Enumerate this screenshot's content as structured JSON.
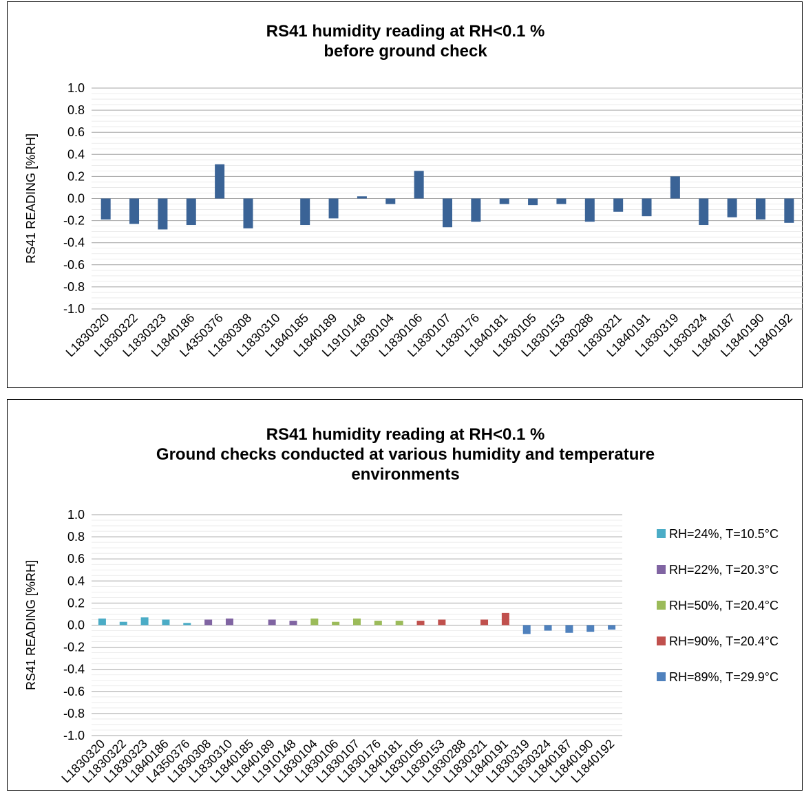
{
  "chart_data": [
    {
      "type": "bar",
      "title_lines": [
        "RS41 humidity reading at RH<0.1 %",
        "before ground check"
      ],
      "ylabel": "RS41 READING [%RH]",
      "ylim": [
        -1.0,
        1.0
      ],
      "y_ticks": [
        "1.0",
        "0.8",
        "0.6",
        "0.4",
        "0.2",
        "0.0",
        "-0.2",
        "-0.4",
        "-0.6",
        "-0.8",
        "-1.0"
      ],
      "grid": true,
      "legend": "none",
      "categories": [
        "L1830320",
        "L1830322",
        "L1830323",
        "L1840186",
        "L4350376",
        "L1830308",
        "L1830310",
        "L1840185",
        "L1840189",
        "L1910148",
        "L1830104",
        "L1830106",
        "L1830107",
        "L1830176",
        "L1840181",
        "L1830105",
        "L1830153",
        "L1830288",
        "L1830321",
        "L1840191",
        "L1830319",
        "L1830324",
        "L1840187",
        "L1840190",
        "L1840192"
      ],
      "values": [
        -0.19,
        -0.23,
        -0.28,
        -0.24,
        0.31,
        -0.27,
        0,
        -0.24,
        -0.18,
        0.02,
        -0.05,
        0.25,
        -0.26,
        -0.21,
        -0.05,
        -0.06,
        -0.05,
        -0.21,
        -0.12,
        -0.16,
        0.2,
        -0.24,
        -0.17,
        -0.19,
        -0.22
      ],
      "color": "#3a6396"
    },
    {
      "type": "bar",
      "title_lines": [
        "RS41 humidity reading at RH<0.1 %",
        "Ground checks conducted at various humidity and temperature",
        "environments"
      ],
      "ylabel": "RS41 READING [%RH]",
      "ylim": [
        -1.0,
        1.0
      ],
      "y_ticks": [
        "1.0",
        "0.8",
        "0.6",
        "0.4",
        "0.2",
        "0.0",
        "-0.2",
        "-0.4",
        "-0.6",
        "-0.8",
        "-1.0"
      ],
      "grid": true,
      "legend": "right",
      "categories": [
        "L1830320",
        "L1830322",
        "L1830323",
        "L1840186",
        "L4350376",
        "L1830308",
        "L1830310",
        "L1840185",
        "L1840189",
        "L1910148",
        "L1830104",
        "L1830106",
        "L1830107",
        "L1830176",
        "L1840181",
        "L1830105",
        "L1830153",
        "L1830288",
        "L1830321",
        "L1840191",
        "L1830319",
        "L1830324",
        "L1840187",
        "L1840190",
        "L1840192"
      ],
      "series": [
        {
          "name": "RH=24%, T=10.5°C",
          "color": "#4bacc6",
          "values": [
            0.06,
            0.03,
            0.07,
            0.05,
            0.02,
            null,
            null,
            null,
            null,
            null,
            null,
            null,
            null,
            null,
            null,
            null,
            null,
            null,
            null,
            null,
            null,
            null,
            null,
            null,
            null
          ]
        },
        {
          "name": "RH=22%, T=20.3°C",
          "color": "#8064a2",
          "values": [
            null,
            null,
            null,
            null,
            null,
            0.05,
            0.06,
            0,
            0.05,
            0.04,
            null,
            null,
            null,
            null,
            null,
            null,
            null,
            null,
            null,
            null,
            null,
            null,
            null,
            null,
            null
          ]
        },
        {
          "name": "RH=50%, T=20.4°C",
          "color": "#9bbb59",
          "values": [
            null,
            null,
            null,
            null,
            null,
            null,
            null,
            null,
            null,
            null,
            0.06,
            0.03,
            0.06,
            0.04,
            0.04,
            null,
            null,
            null,
            null,
            null,
            null,
            null,
            null,
            null,
            null
          ]
        },
        {
          "name": "RH=90%, T=20.4°C",
          "color": "#c0504d",
          "values": [
            null,
            null,
            null,
            null,
            null,
            null,
            null,
            null,
            null,
            null,
            null,
            null,
            null,
            null,
            null,
            0.04,
            0.05,
            0,
            0.05,
            0.11,
            null,
            null,
            null,
            null,
            null
          ]
        },
        {
          "name": "RH=89%, T=29.9°C",
          "color": "#4f81bd",
          "values": [
            null,
            null,
            null,
            null,
            null,
            null,
            null,
            null,
            null,
            null,
            null,
            null,
            null,
            null,
            null,
            null,
            null,
            null,
            null,
            null,
            -0.08,
            -0.05,
            -0.07,
            -0.06,
            -0.04
          ]
        }
      ]
    }
  ]
}
